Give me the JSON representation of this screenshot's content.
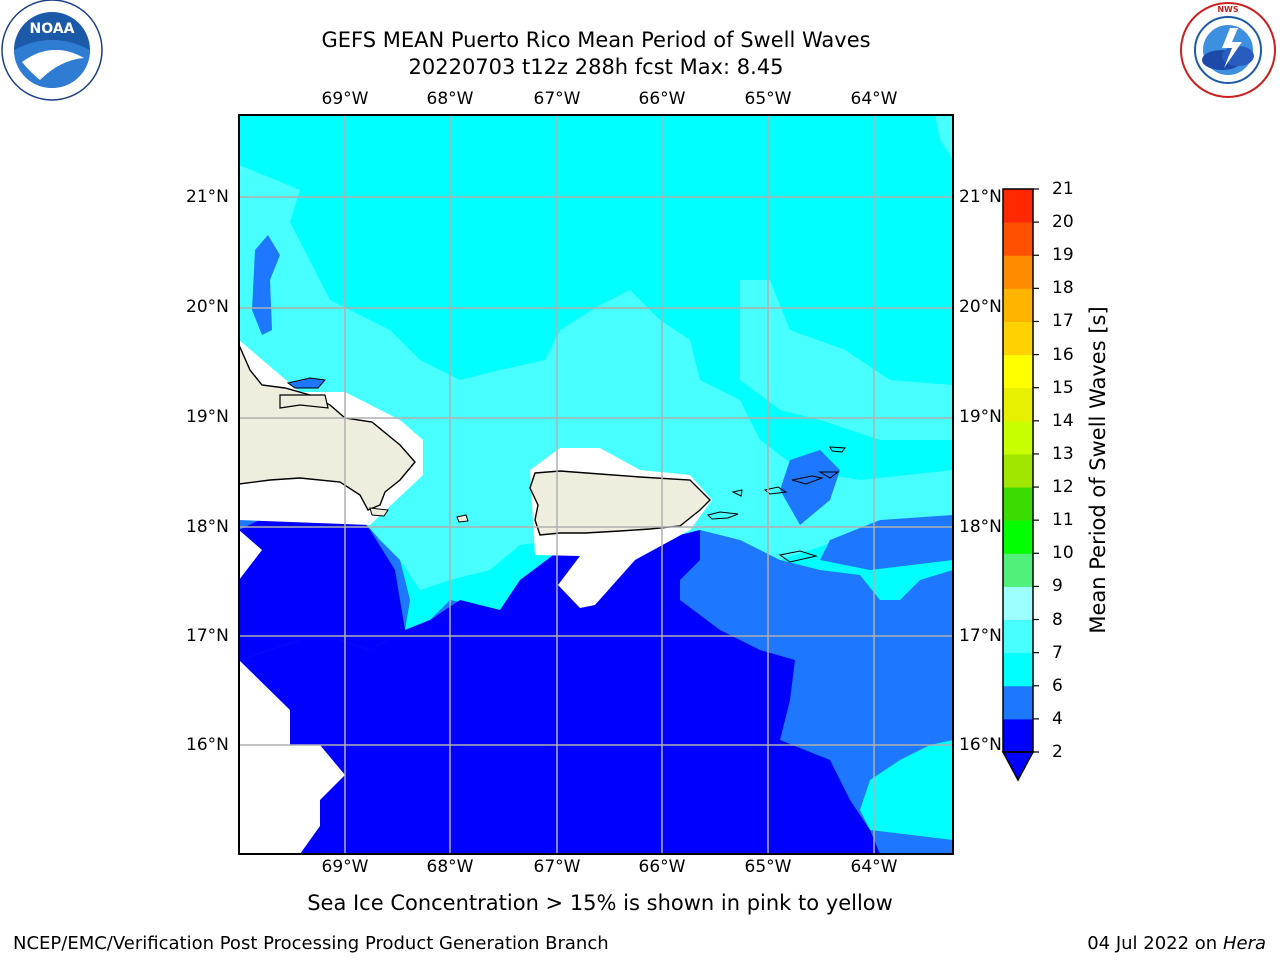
{
  "header": {
    "title_line1": "GEFS MEAN Puerto Rico Mean Period of Swell Waves",
    "title_line2": "20220703 t12z 288h fcst   Max: 8.45"
  },
  "logos": {
    "left_text": "NOAA",
    "left_ring_text": "NATIONAL OCEANIC AND ATMOSPHERIC ADMINISTRATION · U.S. DEPARTMENT OF COMMERCE",
    "right_ring_text": "NATIONAL WEATHER SERVICE"
  },
  "map": {
    "lon_labels_top": [
      "69°W",
      "68°W",
      "67°W",
      "66°W",
      "65°W",
      "64°W"
    ],
    "lon_labels_bottom": [
      "69°W",
      "68°W",
      "67°W",
      "66°W",
      "65°W",
      "64°W"
    ],
    "lat_labels_left": [
      "21°N",
      "20°N",
      "19°N",
      "18°N",
      "17°N",
      "16°N"
    ],
    "lat_labels_right": [
      "21°N",
      "20°N",
      "19°N",
      "18°N",
      "17°N",
      "16°N"
    ]
  },
  "colorbar": {
    "label": "Mean Period of Swell Waves [s]",
    "ticks": [
      "21",
      "20",
      "19",
      "18",
      "17",
      "16",
      "15",
      "14",
      "13",
      "12",
      "11",
      "10",
      "9",
      "8",
      "7",
      "6",
      "4",
      "2"
    ],
    "levels": [
      2,
      4,
      6,
      7,
      8,
      9,
      10,
      11,
      12,
      13,
      14,
      15,
      16,
      17,
      18,
      19,
      20,
      21
    ],
    "colors": [
      "#0000ff",
      "#1e78ff",
      "#00ffff",
      "#48ffff",
      "#9effff",
      "#50f07a",
      "#00ff00",
      "#3cdc00",
      "#a0e600",
      "#c8ff00",
      "#e6f000",
      "#ffff00",
      "#ffd200",
      "#ffb400",
      "#ff8c00",
      "#ff5000",
      "#ff2800",
      "#ff0000"
    ],
    "extend_color": "#0000ff"
  },
  "footer": {
    "note": "Sea Ice Concentration > 15% is shown in pink to yellow",
    "credit": "NCEP/EMC/Verification Post Processing Product Generation Branch",
    "date": "04 Jul 2022 on",
    "host": "Hera"
  }
}
